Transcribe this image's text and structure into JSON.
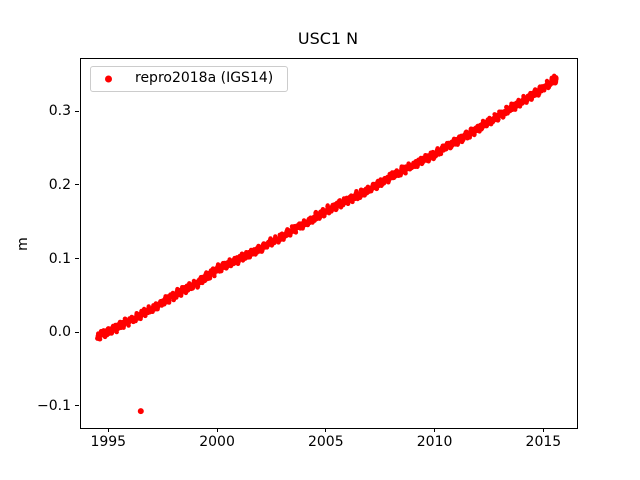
{
  "chart_data": {
    "type": "scatter",
    "title": "USC1 N",
    "xlabel": "",
    "ylabel": "m",
    "grid": false,
    "background": "#ffffff",
    "axis_color": "#000000",
    "xlim": [
      1993.7,
      2016.5
    ],
    "ylim": [
      -0.129,
      0.3725
    ],
    "xticks": [
      1995,
      2000,
      2005,
      2010,
      2015
    ],
    "xtick_labels": [
      "1995",
      "2000",
      "2005",
      "2010",
      "2015"
    ],
    "yticks": [
      -0.1,
      0.0,
      0.1,
      0.2,
      0.3
    ],
    "ytick_labels": [
      "−0.1",
      "0.0",
      "0.1",
      "0.2",
      "0.3"
    ],
    "legend": {
      "label": "repro2018a (IGS14)",
      "position": "upper left",
      "marker_color": "#ff0000",
      "border_color": "#cccccc"
    },
    "series": [
      {
        "name": "repro2018a (IGS14)",
        "color": "#ff0000",
        "marker": "point",
        "marker_size_px": 4.4,
        "x_start": 1994.45,
        "x_end": 2015.55,
        "sampling_step_years": 0.01,
        "noise_amplitude_m": 0.005,
        "trend_anchors": [
          [
            1994.45,
            -0.004
          ],
          [
            1995.0,
            0.002
          ],
          [
            1995.5,
            0.01
          ],
          [
            1996.0,
            0.018
          ],
          [
            1996.5,
            0.026
          ],
          [
            1997.0,
            0.033
          ],
          [
            1997.5,
            0.043
          ],
          [
            1998.0,
            0.051
          ],
          [
            1998.5,
            0.06
          ],
          [
            1999.0,
            0.067
          ],
          [
            1999.5,
            0.077
          ],
          [
            2000.0,
            0.087
          ],
          [
            2000.5,
            0.094
          ],
          [
            2001.0,
            0.101
          ],
          [
            2001.5,
            0.108
          ],
          [
            2002.0,
            0.116
          ],
          [
            2002.5,
            0.124
          ],
          [
            2003.0,
            0.132
          ],
          [
            2003.5,
            0.141
          ],
          [
            2004.0,
            0.149
          ],
          [
            2004.5,
            0.158
          ],
          [
            2005.0,
            0.166
          ],
          [
            2005.5,
            0.174
          ],
          [
            2006.0,
            0.181
          ],
          [
            2006.5,
            0.188
          ],
          [
            2007.0,
            0.196
          ],
          [
            2007.5,
            0.205
          ],
          [
            2008.0,
            0.213
          ],
          [
            2008.5,
            0.221
          ],
          [
            2009.0,
            0.228
          ],
          [
            2009.5,
            0.236
          ],
          [
            2010.0,
            0.244
          ],
          [
            2010.5,
            0.253
          ],
          [
            2011.0,
            0.261
          ],
          [
            2011.5,
            0.27
          ],
          [
            2012.0,
            0.279
          ],
          [
            2012.5,
            0.288
          ],
          [
            2013.0,
            0.297
          ],
          [
            2013.5,
            0.306
          ],
          [
            2014.0,
            0.315
          ],
          [
            2014.5,
            0.324
          ],
          [
            2015.0,
            0.334
          ],
          [
            2015.3,
            0.34
          ],
          [
            2015.55,
            0.348
          ]
        ],
        "outliers": [
          [
            1996.45,
            -0.106
          ]
        ]
      }
    ]
  }
}
